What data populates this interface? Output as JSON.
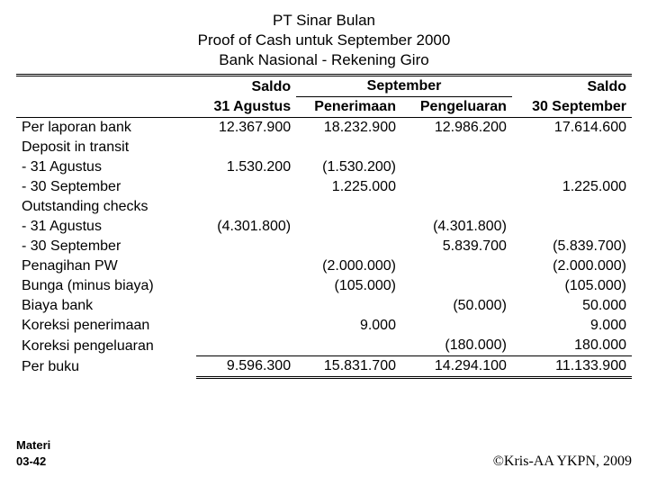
{
  "title": {
    "line1": "PT Sinar Bulan",
    "line2": "Proof of Cash untuk September 2000",
    "line3": "Bank Nasional - Rekening Giro"
  },
  "headers": {
    "saldo1": "Saldo",
    "saldo1_sub": "31 Agustus",
    "september": "September",
    "penerimaan": "Penerimaan",
    "pengeluaran": "Pengeluaran",
    "saldo2": "Saldo",
    "saldo2_sub": "30 September"
  },
  "rows": {
    "r0": {
      "label": "Per laporan bank",
      "c1": "12.367.900",
      "c2": "18.232.900",
      "c3": "12.986.200",
      "c4": "17.614.600"
    },
    "r1": {
      "label": "Deposit in transit",
      "c1": "",
      "c2": "",
      "c3": "",
      "c4": ""
    },
    "r2": {
      "label": "- 31 Agustus",
      "c1": "1.530.200",
      "c2": "(1.530.200)",
      "c3": "",
      "c4": ""
    },
    "r3": {
      "label": "- 30 September",
      "c1": "",
      "c2": "1.225.000",
      "c3": "",
      "c4": "1.225.000"
    },
    "r4": {
      "label": "Outstanding checks",
      "c1": "",
      "c2": "",
      "c3": "",
      "c4": ""
    },
    "r5": {
      "label": "- 31 Agustus",
      "c1": "(4.301.800)",
      "c2": "",
      "c3": "(4.301.800)",
      "c4": ""
    },
    "r6": {
      "label": "- 30 September",
      "c1": "",
      "c2": "",
      "c3": "5.839.700",
      "c4": "(5.839.700)"
    },
    "r7": {
      "label": "Penagihan PW",
      "c1": "",
      "c2": "(2.000.000)",
      "c3": "",
      "c4": "(2.000.000)"
    },
    "r8": {
      "label": "Bunga (minus biaya)",
      "c1": "",
      "c2": "(105.000)",
      "c3": "",
      "c4": "(105.000)"
    },
    "r9": {
      "label": "Biaya bank",
      "c1": "",
      "c2": "",
      "c3": "(50.000)",
      "c4": "50.000"
    },
    "r10": {
      "label": "Koreksi penerimaan",
      "c1": "",
      "c2": "9.000",
      "c3": "",
      "c4": "9.000"
    },
    "r11": {
      "label": "Koreksi pengeluaran",
      "c1": "",
      "c2": "",
      "c3": "(180.000)",
      "c4": "180.000"
    },
    "r12": {
      "label": "Per buku",
      "c1": "9.596.300",
      "c2": "15.831.700",
      "c3": "14.294.100",
      "c4": "11.133.900"
    }
  },
  "footer": {
    "materi": "Materi",
    "page": "03-42",
    "copyright": "©Kris-AA YKPN, 2009"
  }
}
